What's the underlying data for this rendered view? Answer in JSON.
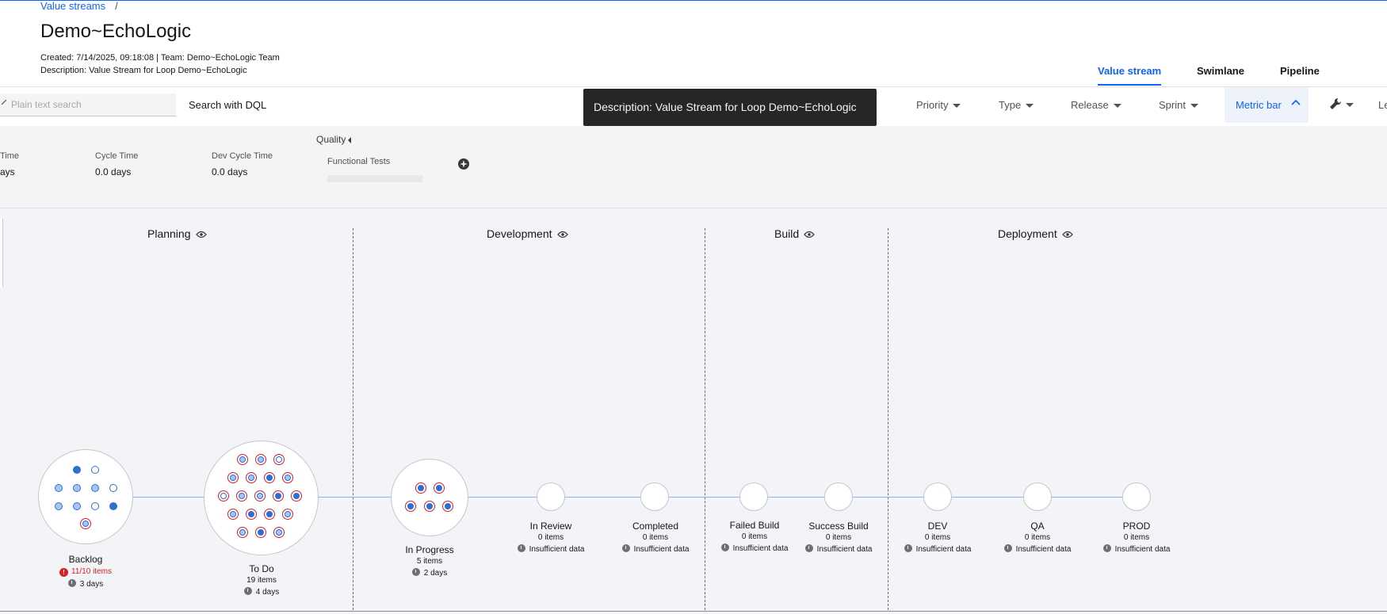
{
  "header": {
    "breadcrumb": "Value streams",
    "breadcrumb_sep": "/",
    "title": "Demo~EchoLogic",
    "created_line": "Created:  7/14/2025, 09:18:08   |   Team:  Demo~EchoLogic Team",
    "description_line": "Description:  Value Stream for Loop Demo~EchoLogic"
  },
  "views": [
    "Value stream",
    "Swimlane",
    "Pipeline"
  ],
  "active_view": "Value stream",
  "toolbar": {
    "search_placeholder": "Plain text search",
    "dql_label": "Search with DQL",
    "tooltip": "Description: Value Stream for Loop Demo~EchoLogic",
    "filters": [
      "Priority",
      "Type",
      "Release",
      "Sprint"
    ],
    "metric_bar": "Metric bar",
    "truncated_right": "Le"
  },
  "metrics": {
    "items": [
      {
        "label": "Time",
        "value": "ays"
      },
      {
        "label": "Cycle Time",
        "value": "0.0 days"
      },
      {
        "label": "Dev Cycle Time",
        "value": "0.0 days"
      }
    ],
    "quality_label": "Quality",
    "functional_tests": "Functional Tests"
  },
  "stages": [
    "Planning",
    "Development",
    "Build",
    "Deployment"
  ],
  "nodes": [
    {
      "name": "Backlog",
      "count": "11/10 items",
      "time": "3 days",
      "over_limit": true
    },
    {
      "name": "To Do",
      "count": "19 items",
      "time": "4 days"
    },
    {
      "name": "In Progress",
      "count": "5 items",
      "time": "2 days"
    },
    {
      "name": "In Review",
      "count": "0 items",
      "time": "Insufficient data"
    },
    {
      "name": "Completed",
      "count": "0 items",
      "time": "Insufficient data"
    },
    {
      "name": "Failed Build",
      "count": "0 items",
      "time": "Insufficient data"
    },
    {
      "name": "Success Build",
      "count": "0 items",
      "time": "Insufficient data"
    },
    {
      "name": "DEV",
      "count": "0 items",
      "time": "Insufficient data"
    },
    {
      "name": "QA",
      "count": "0 items",
      "time": "Insufficient data"
    },
    {
      "name": "PROD",
      "count": "0 items",
      "time": "Insufficient data"
    }
  ],
  "colors": {
    "accent": "#0f62fe",
    "warning": "#da1e28",
    "dot": "#2d6ed4"
  }
}
